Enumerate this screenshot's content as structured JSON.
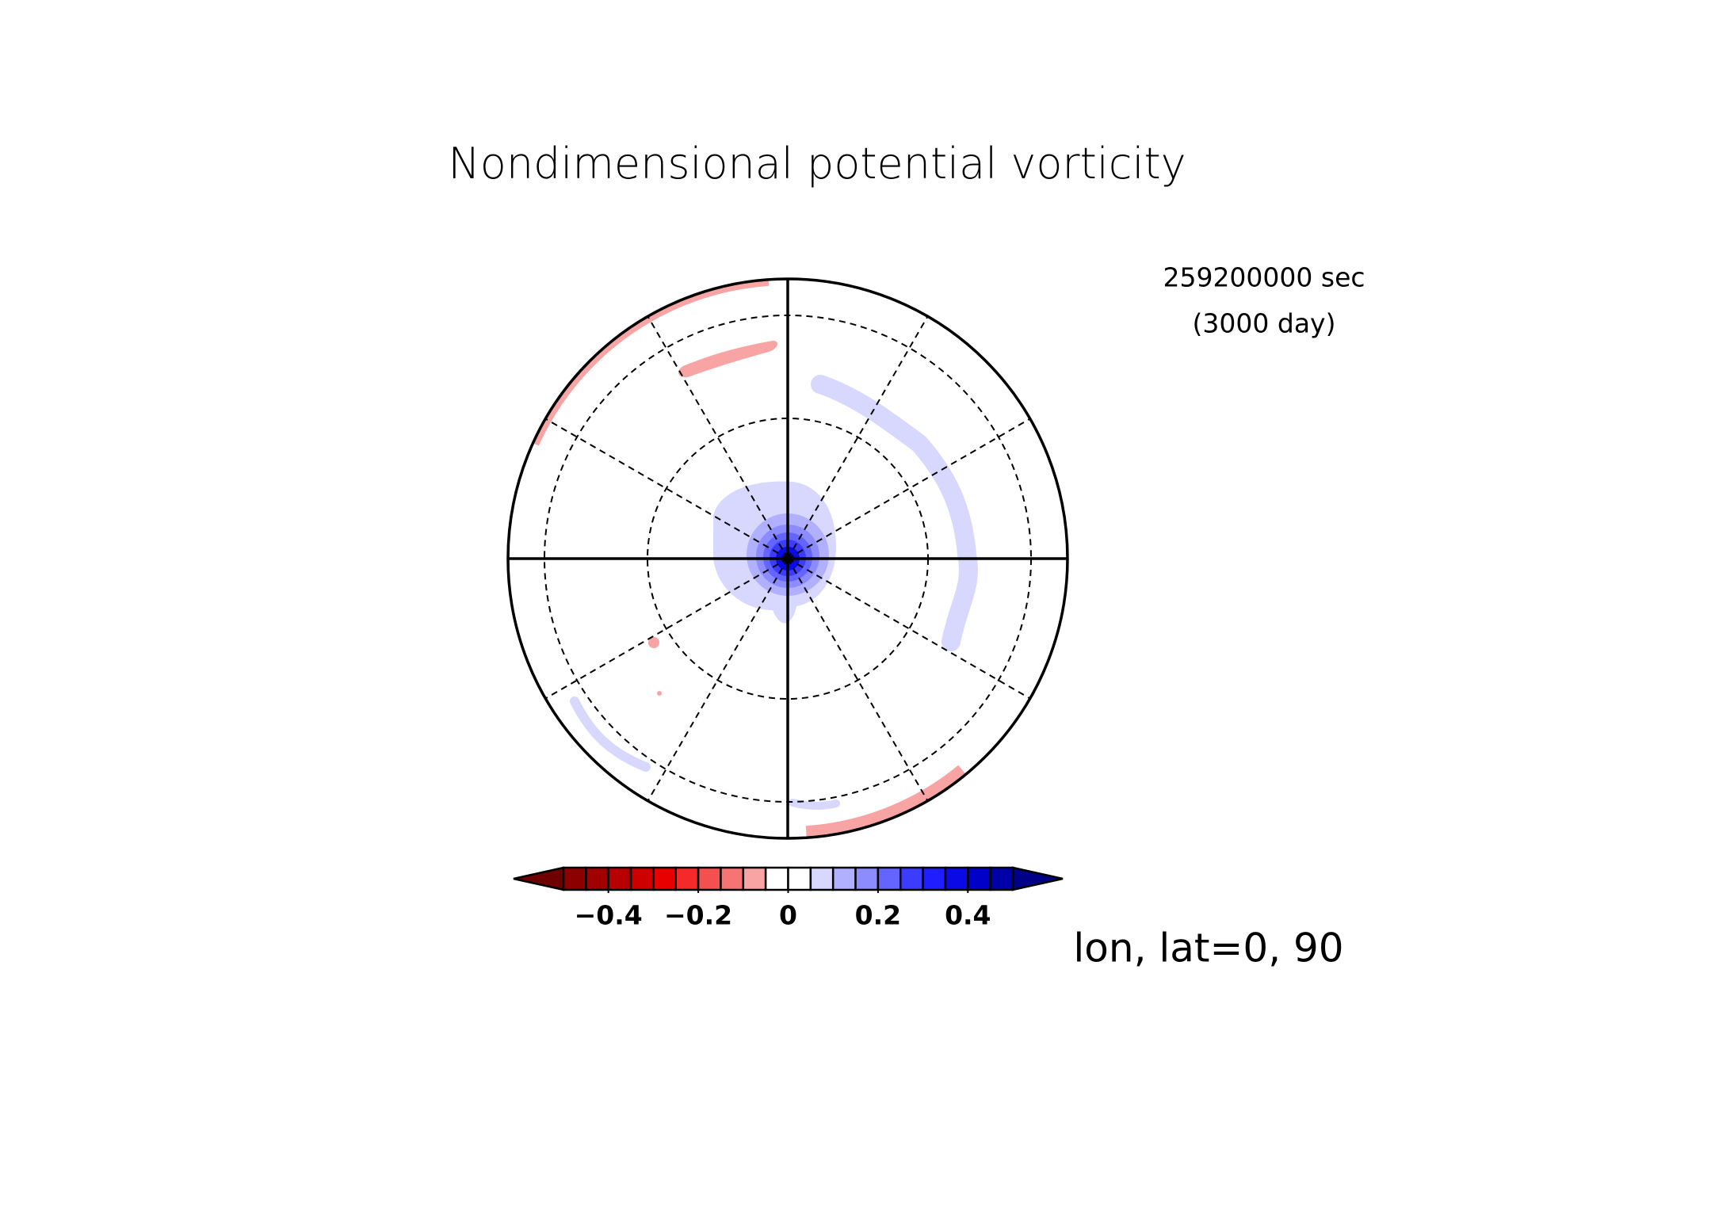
{
  "chart_data": {
    "type": "polar-contour",
    "title": "Nondimensional potential vorticity",
    "time_seconds": "259200000 sec",
    "time_days": "(3000 day)",
    "location": "lon, lat=0, 90",
    "colorbar": {
      "levels": [
        -0.5,
        -0.45,
        -0.4,
        -0.35,
        -0.3,
        -0.25,
        -0.2,
        -0.15,
        -0.1,
        -0.05,
        0,
        0.05,
        0.1,
        0.15,
        0.2,
        0.25,
        0.3,
        0.35,
        0.4,
        0.45,
        0.5
      ],
      "colors": [
        "#8c0000",
        "#a20000",
        "#b80000",
        "#cc0000",
        "#e60000",
        "#f42a2a",
        "#f55050",
        "#f67474",
        "#f8a4a4",
        "#ffffff",
        "#ffffff",
        "#d8d8ff",
        "#b0b0ff",
        "#8c8cff",
        "#6464ff",
        "#3c3cff",
        "#1e1eff",
        "#0a0ae6",
        "#0000c8",
        "#0000a8"
      ],
      "under_color": "#6e0000",
      "over_color": "#000088",
      "ticks": [
        {
          "value": -0.4,
          "label": "−0.4"
        },
        {
          "value": -0.2,
          "label": "−0.2"
        },
        0,
        0.2,
        0.4
      ]
    }
  }
}
